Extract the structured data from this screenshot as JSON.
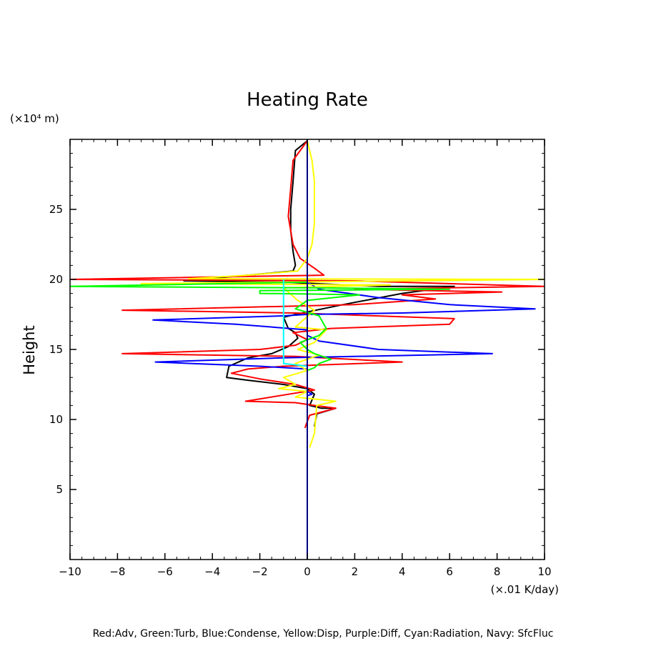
{
  "chart_data": {
    "type": "line",
    "title": "Heating Rate",
    "ylabel": "Height",
    "y_unit": "(×10⁴ m)",
    "x_unit": "(×.01 K/day)",
    "footer": "Red:Adv, Green:Turb, Blue:Condense, Yellow:Disp, Purple:Diff, Cyan:Radiation, Navy: SfcFluc",
    "xlim": [
      -10,
      10
    ],
    "ylim": [
      0,
      30
    ],
    "x_ticks": [
      -10,
      -8,
      -6,
      -4,
      -2,
      0,
      2,
      4,
      6,
      8,
      10
    ],
    "y_ticks": [
      5,
      10,
      15,
      20,
      25
    ],
    "grid": false,
    "series": [
      {
        "color": "#000000",
        "points": [
          [
            0,
            29.9
          ],
          [
            -0.5,
            29.2
          ],
          [
            -0.6,
            27
          ],
          [
            -0.7,
            25
          ],
          [
            -0.7,
            23.5
          ],
          [
            -0.6,
            22
          ],
          [
            -0.5,
            21
          ],
          [
            -0.6,
            20.6
          ],
          [
            -2.5,
            20.3
          ],
          [
            -5.2,
            19.9
          ],
          [
            -1,
            19.8
          ],
          [
            3,
            19.5
          ],
          [
            6.2,
            19.5
          ],
          [
            4,
            19
          ],
          [
            1.5,
            18.2
          ],
          [
            -0.5,
            17.5
          ],
          [
            -1,
            17.3
          ],
          [
            -0.8,
            16.5
          ],
          [
            -0.5,
            16.2
          ],
          [
            -0.4,
            15.8
          ],
          [
            -0.8,
            15.2
          ],
          [
            -1.5,
            14.7
          ],
          [
            -2.5,
            14.4
          ],
          [
            -3.3,
            13.8
          ],
          [
            -3.4,
            13
          ],
          [
            -2.5,
            12.8
          ],
          [
            -1,
            12.5
          ],
          [
            0,
            12.2
          ],
          [
            0.3,
            11.8
          ],
          [
            0.1,
            11
          ],
          [
            0.6,
            10.8
          ],
          [
            1.2,
            10.8
          ],
          [
            0.4,
            10.4
          ],
          [
            0.3,
            9.5
          ]
        ]
      },
      {
        "color": "#ff0000",
        "points": [
          [
            0,
            29.9
          ],
          [
            -0.6,
            28.5
          ],
          [
            -0.7,
            26.5
          ],
          [
            -0.8,
            24.5
          ],
          [
            -0.6,
            22.5
          ],
          [
            -0.3,
            21.5
          ],
          [
            0.3,
            20.8
          ],
          [
            0.7,
            20.3
          ],
          [
            -10,
            20
          ],
          [
            2,
            19.9
          ],
          [
            10,
            19.5
          ],
          [
            2,
            19.3
          ],
          [
            8.2,
            19.1
          ],
          [
            4,
            18.9
          ],
          [
            5.4,
            18.6
          ],
          [
            2,
            18.2
          ],
          [
            -7.8,
            17.8
          ],
          [
            -0.5,
            17.6
          ],
          [
            6.2,
            17.2
          ],
          [
            6,
            16.8
          ],
          [
            1,
            16.5
          ],
          [
            -0.6,
            16.2
          ],
          [
            0,
            15.7
          ],
          [
            -0.5,
            15.3
          ],
          [
            -2,
            15
          ],
          [
            -7.8,
            14.7
          ],
          [
            -0.5,
            14.5
          ],
          [
            4,
            14.1
          ],
          [
            -1,
            13.8
          ],
          [
            -2.5,
            13.6
          ],
          [
            -3.2,
            13.3
          ],
          [
            -2,
            12.9
          ],
          [
            -0.5,
            12.5
          ],
          [
            0.3,
            12.1
          ],
          [
            -2.6,
            11.3
          ],
          [
            -0.5,
            11.2
          ],
          [
            0.3,
            11
          ],
          [
            1.2,
            10.8
          ],
          [
            0.1,
            10.3
          ],
          [
            -0.1,
            9.4
          ]
        ]
      },
      {
        "color": "#0000ff",
        "points": [
          [
            0,
            30
          ],
          [
            0,
            20
          ],
          [
            0,
            19.8
          ],
          [
            0.5,
            19.3
          ],
          [
            3,
            18.7
          ],
          [
            6,
            18.2
          ],
          [
            9.6,
            17.9
          ],
          [
            4,
            17.6
          ],
          [
            0,
            17.5
          ],
          [
            -1,
            17.4
          ],
          [
            -6.5,
            17.1
          ],
          [
            -3,
            16.8
          ],
          [
            0,
            16.4
          ],
          [
            0,
            16
          ],
          [
            0.5,
            15.6
          ],
          [
            3,
            15
          ],
          [
            7.8,
            14.7
          ],
          [
            2,
            14.5
          ],
          [
            -1,
            14.4
          ],
          [
            -6.4,
            14.1
          ],
          [
            -2,
            13.8
          ],
          [
            0,
            13.6
          ],
          [
            0,
            12
          ],
          [
            0.2,
            11.8
          ],
          [
            0,
            11.7
          ],
          [
            0,
            9.5
          ]
        ]
      },
      {
        "color": "#ffff00",
        "points": [
          [
            0,
            29.9
          ],
          [
            0.2,
            28.5
          ],
          [
            0.3,
            27
          ],
          [
            0.3,
            24
          ],
          [
            0.2,
            22.5
          ],
          [
            0,
            21.5
          ],
          [
            -0.4,
            20.6
          ],
          [
            -2.5,
            20.3
          ],
          [
            -5,
            20.05
          ],
          [
            10,
            20
          ],
          [
            -7,
            19.7
          ],
          [
            3.5,
            19.6
          ],
          [
            -1,
            19.4
          ],
          [
            -0.4,
            18.5
          ],
          [
            0.3,
            17.8
          ],
          [
            -0.5,
            16.6
          ],
          [
            0.8,
            16.4
          ],
          [
            0.3,
            15.5
          ],
          [
            -0.4,
            15
          ],
          [
            0.5,
            14.6
          ],
          [
            -0.5,
            14
          ],
          [
            0,
            13.5
          ],
          [
            -1,
            13
          ],
          [
            -0.5,
            12.5
          ],
          [
            -1.2,
            12.2
          ],
          [
            0,
            12
          ],
          [
            -0.5,
            11.6
          ],
          [
            1.2,
            11.3
          ],
          [
            0.4,
            11
          ],
          [
            0.3,
            9
          ],
          [
            0.1,
            8
          ]
        ]
      },
      {
        "color": "#00ff00",
        "points": [
          [
            0,
            19.8
          ],
          [
            -10,
            19.5
          ],
          [
            0.3,
            19.4
          ],
          [
            6,
            19.3
          ],
          [
            -2,
            19.2
          ],
          [
            -2,
            19
          ],
          [
            0.5,
            18.95
          ],
          [
            2.2,
            18.9
          ],
          [
            0,
            18.5
          ],
          [
            -0.5,
            17.9
          ],
          [
            0.5,
            17.4
          ],
          [
            0.8,
            16.5
          ],
          [
            0.5,
            16
          ],
          [
            -0.3,
            15.5
          ],
          [
            0,
            15
          ],
          [
            0.3,
            14.7
          ],
          [
            1,
            14.3
          ],
          [
            0.5,
            14
          ],
          [
            0.3,
            13.7
          ],
          [
            0,
            13.5
          ],
          [
            0,
            12
          ],
          [
            0,
            11
          ]
        ]
      },
      {
        "color": "#00ffff",
        "points": [
          [
            -1,
            20
          ],
          [
            -1,
            14
          ],
          [
            0,
            13.8
          ],
          [
            0,
            12
          ]
        ]
      },
      {
        "color": "#000080",
        "points": [
          [
            0,
            30
          ],
          [
            0,
            0
          ]
        ]
      }
    ]
  }
}
